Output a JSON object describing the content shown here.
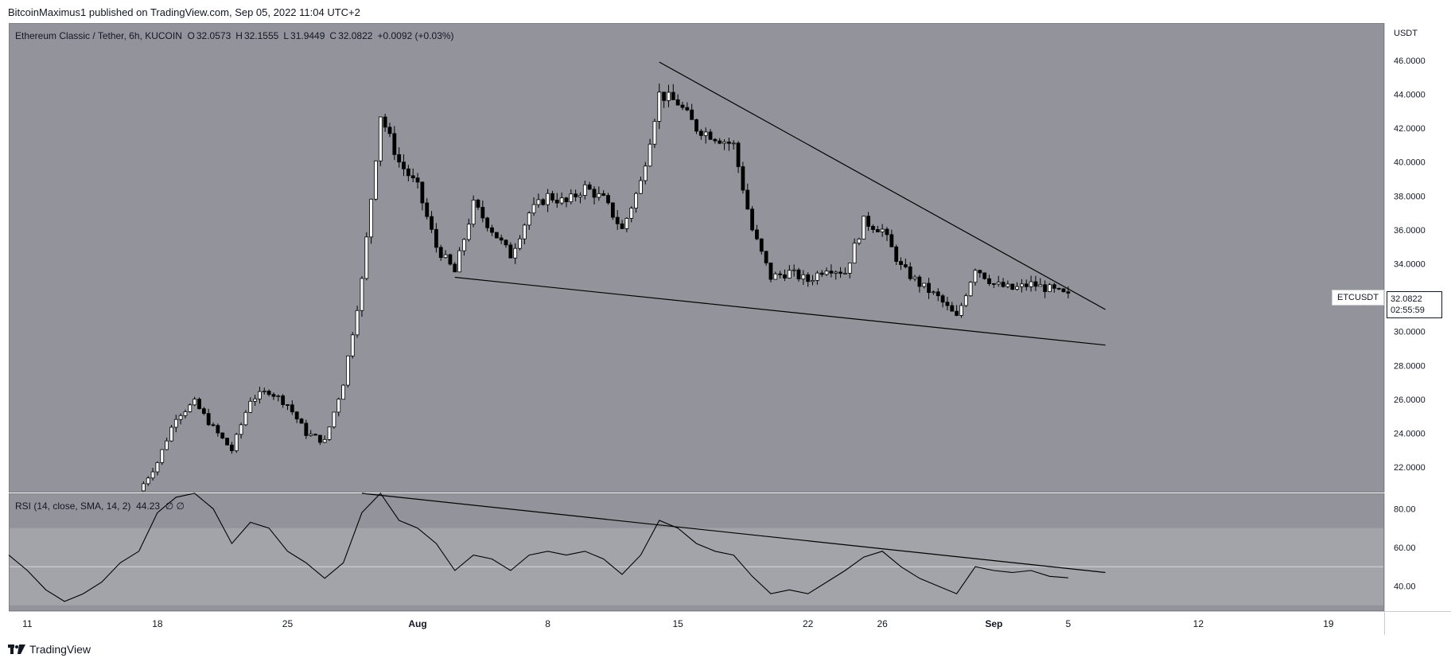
{
  "header": {
    "attribution": "BitcoinMaximus1 published on TradingView.com, Sep 05, 2022 11:04 UTC+2"
  },
  "legend": {
    "symbol": "Ethereum Classic / Tether, 6h, KUCOIN",
    "o_label": "O",
    "o_value": "32.0573",
    "h_label": "H",
    "h_value": "32.1555",
    "l_label": "L",
    "l_value": "31.9449",
    "c_label": "C",
    "c_value": "32.0822",
    "change": "+0.0092 (+0.03%)"
  },
  "price_badge": {
    "ticker": "ETCUSDT",
    "price": "32.0822",
    "countdown": "02:55:59"
  },
  "rsi_legend": {
    "label": "RSI (14, close, SMA, 14, 2)",
    "value": "44.23",
    "extra": "∅ ∅"
  },
  "footer": {
    "brand": "TradingView",
    "logo_icon": "tradingview-logo-icon"
  },
  "colors": {
    "panel": "#93949b",
    "band": "#a3a4aa",
    "candle_up": "#ffffff",
    "candle_down": "#000000",
    "line": "#000000"
  },
  "chart_data": [
    {
      "type": "candlestick",
      "title": "Ethereum Classic / Tether, 6h, KUCOIN",
      "unit": "USDT",
      "y_axis_ticks": [
        "46.0000",
        "44.0000",
        "42.0000",
        "40.0000",
        "38.0000",
        "36.0000",
        "34.0000",
        "32.0000",
        "30.0000",
        "28.0000",
        "26.0000",
        "24.0000",
        "22.0000"
      ],
      "ylim": [
        20.5,
        48.2
      ],
      "x_axis_ticks": [
        "11",
        "18",
        "25",
        "Aug",
        "8",
        "15",
        "22",
        "26",
        "Sep",
        "5",
        "12",
        "19"
      ],
      "x_axis_dates": [
        "2022-07-11",
        "2022-07-18",
        "2022-07-25",
        "2022-08-01",
        "2022-08-08",
        "2022-08-15",
        "2022-08-22",
        "2022-08-26",
        "2022-09-01",
        "2022-09-05",
        "2022-09-12",
        "2022-09-19"
      ],
      "xlim": [
        "2022-07-10",
        "2022-09-22"
      ],
      "closes_by_day": [
        {
          "date": "2022-07-17",
          "close": 20.6
        },
        {
          "date": "2022-07-18",
          "close": 22.3
        },
        {
          "date": "2022-07-19",
          "close": 25.0
        },
        {
          "date": "2022-07-20",
          "close": 25.8
        },
        {
          "date": "2022-07-21",
          "close": 24.3
        },
        {
          "date": "2022-07-22",
          "close": 23.0
        },
        {
          "date": "2022-07-23",
          "close": 26.0
        },
        {
          "date": "2022-07-24",
          "close": 26.5
        },
        {
          "date": "2022-07-25",
          "close": 25.7
        },
        {
          "date": "2022-07-26",
          "close": 24.0
        },
        {
          "date": "2022-07-27",
          "close": 23.5
        },
        {
          "date": "2022-07-28",
          "close": 27.0
        },
        {
          "date": "2022-07-29",
          "close": 33.0
        },
        {
          "date": "2022-07-30",
          "close": 42.8
        },
        {
          "date": "2022-07-31",
          "close": 40.0
        },
        {
          "date": "2022-08-01",
          "close": 38.5
        },
        {
          "date": "2022-08-02",
          "close": 35.0
        },
        {
          "date": "2022-08-03",
          "close": 33.5
        },
        {
          "date": "2022-08-04",
          "close": 37.5
        },
        {
          "date": "2022-08-05",
          "close": 36.0
        },
        {
          "date": "2022-08-06",
          "close": 34.5
        },
        {
          "date": "2022-08-07",
          "close": 37.0
        },
        {
          "date": "2022-08-08",
          "close": 38.0
        },
        {
          "date": "2022-08-09",
          "close": 37.6
        },
        {
          "date": "2022-08-10",
          "close": 38.5
        },
        {
          "date": "2022-08-11",
          "close": 37.8
        },
        {
          "date": "2022-08-12",
          "close": 36.0
        },
        {
          "date": "2022-08-13",
          "close": 38.8
        },
        {
          "date": "2022-08-14",
          "close": 44.0
        },
        {
          "date": "2022-08-15",
          "close": 43.5
        },
        {
          "date": "2022-08-16",
          "close": 42.0
        },
        {
          "date": "2022-08-17",
          "close": 41.5
        },
        {
          "date": "2022-08-18",
          "close": 41.0
        },
        {
          "date": "2022-08-19",
          "close": 36.0
        },
        {
          "date": "2022-08-20",
          "close": 33.2
        },
        {
          "date": "2022-08-21",
          "close": 33.5
        },
        {
          "date": "2022-08-22",
          "close": 33.0
        },
        {
          "date": "2022-08-23",
          "close": 33.8
        },
        {
          "date": "2022-08-24",
          "close": 33.5
        },
        {
          "date": "2022-08-25",
          "close": 36.5
        },
        {
          "date": "2022-08-26",
          "close": 36.0
        },
        {
          "date": "2022-08-27",
          "close": 33.8
        },
        {
          "date": "2022-08-28",
          "close": 32.8
        },
        {
          "date": "2022-08-29",
          "close": 32.0
        },
        {
          "date": "2022-08-30",
          "close": 30.8
        },
        {
          "date": "2022-08-31",
          "close": 33.8
        },
        {
          "date": "2022-09-01",
          "close": 32.8
        },
        {
          "date": "2022-09-02",
          "close": 32.5
        },
        {
          "date": "2022-09-03",
          "close": 32.8
        },
        {
          "date": "2022-09-04",
          "close": 32.5
        },
        {
          "date": "2022-09-05",
          "close": 32.08
        }
      ],
      "last_price": 32.0822,
      "annotations": [
        {
          "type": "descending_resistance_line",
          "from": {
            "date": "2022-08-14",
            "price": 45.9
          },
          "to": {
            "date": "2022-09-07",
            "price": 31.3
          }
        },
        {
          "type": "support_line",
          "from": {
            "date": "2022-08-03",
            "price": 33.2
          },
          "to": {
            "date": "2022-09-07",
            "price": 29.2
          }
        }
      ]
    },
    {
      "type": "line",
      "title": "RSI (14, close, SMA, 14, 2)",
      "y_axis_ticks": [
        "80.00",
        "60.00",
        "40.00"
      ],
      "ylim": [
        27,
        88
      ],
      "band": [
        30,
        70
      ],
      "midline": 50,
      "series": [
        {
          "name": "RSI",
          "points": [
            {
              "date": "2022-07-10",
              "value": 56
            },
            {
              "date": "2022-07-11",
              "value": 48
            },
            {
              "date": "2022-07-12",
              "value": 38
            },
            {
              "date": "2022-07-13",
              "value": 32
            },
            {
              "date": "2022-07-14",
              "value": 36
            },
            {
              "date": "2022-07-15",
              "value": 42
            },
            {
              "date": "2022-07-16",
              "value": 52
            },
            {
              "date": "2022-07-17",
              "value": 58
            },
            {
              "date": "2022-07-18",
              "value": 78
            },
            {
              "date": "2022-07-19",
              "value": 86
            },
            {
              "date": "2022-07-20",
              "value": 88
            },
            {
              "date": "2022-07-21",
              "value": 80
            },
            {
              "date": "2022-07-22",
              "value": 62
            },
            {
              "date": "2022-07-23",
              "value": 73
            },
            {
              "date": "2022-07-24",
              "value": 70
            },
            {
              "date": "2022-07-25",
              "value": 58
            },
            {
              "date": "2022-07-26",
              "value": 52
            },
            {
              "date": "2022-07-27",
              "value": 44
            },
            {
              "date": "2022-07-28",
              "value": 52
            },
            {
              "date": "2022-07-29",
              "value": 78
            },
            {
              "date": "2022-07-30",
              "value": 88
            },
            {
              "date": "2022-07-31",
              "value": 74
            },
            {
              "date": "2022-08-01",
              "value": 70
            },
            {
              "date": "2022-08-02",
              "value": 62
            },
            {
              "date": "2022-08-03",
              "value": 48
            },
            {
              "date": "2022-08-04",
              "value": 56
            },
            {
              "date": "2022-08-05",
              "value": 54
            },
            {
              "date": "2022-08-06",
              "value": 48
            },
            {
              "date": "2022-08-07",
              "value": 56
            },
            {
              "date": "2022-08-08",
              "value": 58
            },
            {
              "date": "2022-08-09",
              "value": 56
            },
            {
              "date": "2022-08-10",
              "value": 58
            },
            {
              "date": "2022-08-11",
              "value": 54
            },
            {
              "date": "2022-08-12",
              "value": 46
            },
            {
              "date": "2022-08-13",
              "value": 56
            },
            {
              "date": "2022-08-14",
              "value": 74
            },
            {
              "date": "2022-08-15",
              "value": 70
            },
            {
              "date": "2022-08-16",
              "value": 62
            },
            {
              "date": "2022-08-17",
              "value": 58
            },
            {
              "date": "2022-08-18",
              "value": 56
            },
            {
              "date": "2022-08-19",
              "value": 45
            },
            {
              "date": "2022-08-20",
              "value": 36
            },
            {
              "date": "2022-08-21",
              "value": 38
            },
            {
              "date": "2022-08-22",
              "value": 36
            },
            {
              "date": "2022-08-23",
              "value": 42
            },
            {
              "date": "2022-08-24",
              "value": 48
            },
            {
              "date": "2022-08-25",
              "value": 55
            },
            {
              "date": "2022-08-26",
              "value": 58
            },
            {
              "date": "2022-08-27",
              "value": 50
            },
            {
              "date": "2022-08-28",
              "value": 44
            },
            {
              "date": "2022-08-29",
              "value": 40
            },
            {
              "date": "2022-08-30",
              "value": 36
            },
            {
              "date": "2022-08-31",
              "value": 50
            },
            {
              "date": "2022-09-01",
              "value": 48
            },
            {
              "date": "2022-09-02",
              "value": 47
            },
            {
              "date": "2022-09-03",
              "value": 48
            },
            {
              "date": "2022-09-04",
              "value": 45
            },
            {
              "date": "2022-09-05",
              "value": 44.23
            }
          ]
        }
      ],
      "annotations": [
        {
          "type": "descending_trendline",
          "from": {
            "date": "2022-07-29",
            "value": 88
          },
          "to": {
            "date": "2022-09-07",
            "value": 47
          }
        }
      ]
    }
  ]
}
